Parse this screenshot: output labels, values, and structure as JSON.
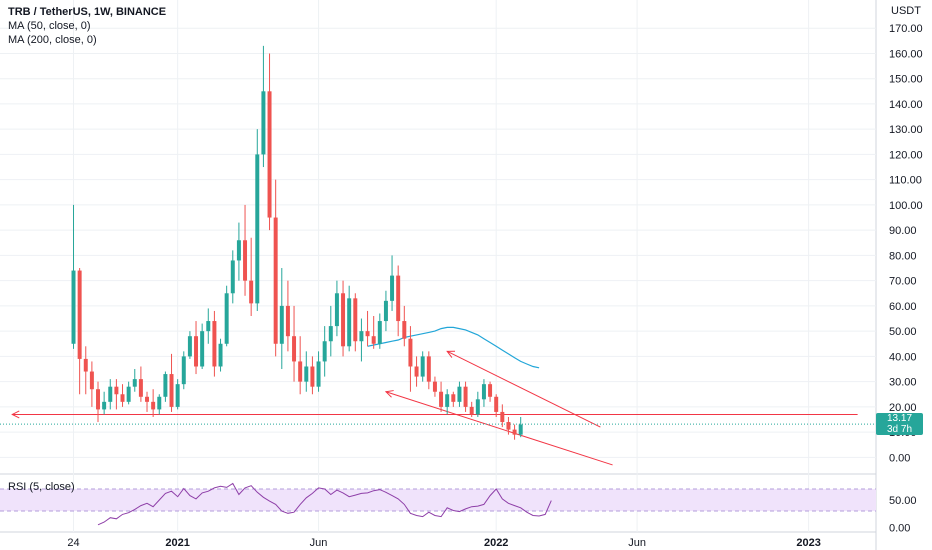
{
  "legend": {
    "title": "TRB / TetherUS, 1W, BINANCE",
    "ma50": "MA (50, close, 0)",
    "ma200": "MA (200, close, 0)"
  },
  "rsi_label": "RSI (5, close)",
  "price_label": {
    "value": "13.17",
    "countdown": "3d 7h"
  },
  "colors": {
    "up": "#26a69a",
    "down": "#ef5350",
    "ma": "#22a6d8",
    "rsi": "#8e3fa8",
    "rsi_band": "#f0e3fb",
    "line_red": "#f23645",
    "dotted": "#26a69a",
    "grid": "#eef1f4"
  },
  "chart_data": [
    {
      "type": "candlestick",
      "title": "TRB / TetherUS, 1W, BINANCE",
      "y_axis": {
        "unit": "USDT",
        "ticks": [
          0,
          10,
          20,
          30,
          40,
          50,
          60,
          70,
          80,
          90,
          100,
          110,
          120,
          130,
          140,
          150,
          160,
          170
        ],
        "tick_labels": [
          "0.00",
          "10.00",
          "20.00",
          "30.00",
          "40.00",
          "50.00",
          "60.00",
          "70.00",
          "80.00",
          "90.00",
          "100.00",
          "110.00",
          "120.00",
          "130.00",
          "140.00",
          "150.00",
          "160.00",
          "170.00"
        ],
        "range": [
          -5,
          178
        ]
      },
      "x_axis": {
        "tick_labels": [
          "24",
          "2021",
          "Jun",
          "2022",
          "Jun",
          "2023"
        ],
        "tick_index": [
          0,
          17,
          40,
          69,
          92,
          120
        ],
        "range_index": [
          -12,
          131
        ]
      },
      "series": [
        {
          "kind": "ohlc",
          "first_index": 0,
          "values": [
            [
              45,
              100,
              43,
              74
            ],
            [
              74,
              75,
              25,
              39
            ],
            [
              39,
              44,
              25,
              34
            ],
            [
              34,
              38,
              20,
              27
            ],
            [
              27,
              30,
              14,
              19
            ],
            [
              19,
              26,
              17,
              22
            ],
            [
              22,
              31,
              19,
              28
            ],
            [
              28,
              31,
              19,
              25
            ],
            [
              25,
              29,
              20,
              22
            ],
            [
              22,
              30,
              21,
              28
            ],
            [
              28,
              35,
              26,
              31
            ],
            [
              31,
              36,
              22,
              24
            ],
            [
              24,
              26,
              18,
              22
            ],
            [
              22,
              27,
              16,
              19
            ],
            [
              19,
              25,
              17,
              24
            ],
            [
              24,
              34,
              22,
              33
            ],
            [
              33,
              41,
              18,
              20
            ],
            [
              20,
              31,
              19,
              29
            ],
            [
              29,
              42,
              27,
              40
            ],
            [
              40,
              50,
              39,
              48
            ],
            [
              48,
              54,
              33,
              36
            ],
            [
              36,
              53,
              35,
              50
            ],
            [
              50,
              59,
              45,
              54
            ],
            [
              54,
              58,
              32,
              36
            ],
            [
              36,
              47,
              34,
              45
            ],
            [
              45,
              68,
              44,
              65
            ],
            [
              65,
              82,
              61,
              78
            ],
            [
              78,
              93,
              70,
              86
            ],
            [
              86,
              100,
              64,
              70
            ],
            [
              70,
              87,
              56,
              61
            ],
            [
              61,
              130,
              58,
              120
            ],
            [
              120,
              163,
              115,
              145
            ],
            [
              145,
              160,
              90,
              95
            ],
            [
              95,
              110,
              40,
              45
            ],
            [
              45,
              75,
              35,
              60
            ],
            [
              60,
              70,
              42,
              48
            ],
            [
              48,
              60,
              30,
              38
            ],
            [
              38,
              48,
              25,
              30
            ],
            [
              30,
              42,
              26,
              36
            ],
            [
              36,
              40,
              25,
              28
            ],
            [
              28,
              42,
              26,
              38
            ],
            [
              38,
              52,
              32,
              46
            ],
            [
              46,
              60,
              40,
              52
            ],
            [
              52,
              70,
              48,
              65
            ],
            [
              65,
              70,
              40,
              44
            ],
            [
              44,
              68,
              42,
              63
            ],
            [
              63,
              65,
              42,
              46
            ],
            [
              46,
              55,
              38,
              50
            ],
            [
              50,
              58,
              44,
              48
            ],
            [
              48,
              56,
              43,
              45
            ],
            [
              45,
              57,
              43,
              54
            ],
            [
              54,
              66,
              50,
              62
            ],
            [
              62,
              80,
              58,
              72
            ],
            [
              72,
              76,
              48,
              54
            ],
            [
              54,
              60,
              44,
              47
            ],
            [
              47,
              52,
              26,
              36
            ],
            [
              36,
              40,
              28,
              32
            ],
            [
              32,
              42,
              30,
              40
            ],
            [
              40,
              42,
              27,
              30
            ],
            [
              30,
              32,
              24,
              26
            ],
            [
              26,
              30,
              18,
              20
            ],
            [
              20,
              27,
              17,
              25
            ],
            [
              25,
              26,
              20,
              22
            ],
            [
              22,
              30,
              20,
              28
            ],
            [
              28,
              30,
              18,
              20
            ],
            [
              20,
              22,
              16,
              17
            ],
            [
              17,
              26,
              16,
              23
            ],
            [
              23,
              31,
              20,
              29
            ],
            [
              29,
              30,
              22,
              24
            ],
            [
              24,
              25,
              16,
              18
            ],
            [
              18,
              21,
              12,
              14
            ],
            [
              14,
              16,
              9,
              11
            ],
            [
              11,
              13,
              7,
              9
            ],
            [
              9,
              16,
              8,
              13
            ]
          ]
        },
        {
          "kind": "line",
          "name": "MA (50, close, 0)",
          "first_index": 48,
          "values": [
            44,
            44.5,
            45,
            45.5,
            46,
            46.5,
            47.5,
            48,
            48.5,
            49,
            49.5,
            50,
            51,
            51.5,
            51.5,
            51,
            50.5,
            49.5,
            48.5,
            47,
            45.5,
            44,
            42.5,
            41,
            39.5,
            38,
            37,
            36,
            35.5
          ]
        }
      ],
      "annotations": [
        {
          "kind": "horizontal-ray",
          "direction": "left",
          "value": 17,
          "from_index": -10,
          "to_index": 128
        },
        {
          "kind": "trend-line",
          "points": [
            [
              61,
              42
            ],
            [
              86,
              12
            ]
          ]
        },
        {
          "kind": "trend-line",
          "points": [
            [
              51,
              26
            ],
            [
              88,
              -3
            ]
          ]
        },
        {
          "kind": "level-line",
          "value": 13.17,
          "style": "dotted"
        }
      ]
    },
    {
      "type": "line",
      "title": "RSI (5, close)",
      "y_axis": {
        "ticks": [
          0,
          50
        ],
        "tick_labels": [
          "0.00",
          "50.00"
        ],
        "band": [
          30,
          70
        ],
        "range": [
          -8,
          90
        ]
      },
      "series": [
        {
          "name": "RSI (5, close)",
          "first_index": 4,
          "values": [
            5,
            10,
            18,
            16,
            24,
            27,
            33,
            40,
            44,
            38,
            50,
            62,
            66,
            56,
            71,
            58,
            52,
            63,
            66,
            72,
            75,
            73,
            80,
            60,
            72,
            76,
            64,
            55,
            48,
            42,
            30,
            26,
            28,
            42,
            54,
            62,
            72,
            70,
            60,
            68,
            63,
            56,
            59,
            62,
            63,
            67,
            69,
            64,
            58,
            52,
            42,
            26,
            22,
            20,
            28,
            22,
            20,
            36,
            31,
            29,
            34,
            38,
            39,
            42,
            58,
            70,
            52,
            44,
            40,
            36,
            28,
            22,
            21,
            24,
            49
          ]
        }
      ]
    }
  ]
}
